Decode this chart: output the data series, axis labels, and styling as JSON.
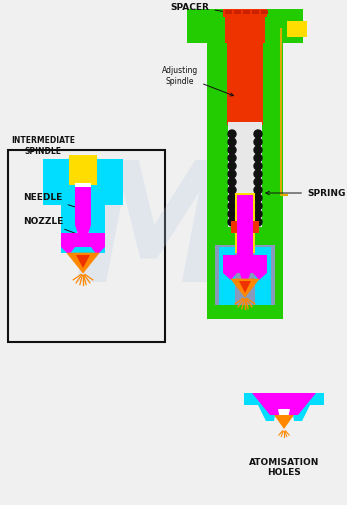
{
  "bg_color": "#f0f0f0",
  "green": "#22cc00",
  "orange_red": "#ee3300",
  "orange": "#ff8800",
  "yellow": "#ffdd00",
  "cyan": "#00ddff",
  "magenta": "#ff00ff",
  "purple_blue": "#8899bb",
  "white": "#ffffff",
  "black": "#111111",
  "spring_white": "#e8e8e8",
  "gold_line": "#ddaa00",
  "labels": {
    "spacer": "SPACER",
    "adjusting_spindle": "Adjusting\nSpindle",
    "spring": "SPRING",
    "intermediate_spindle": "INTERMEDIATE\nSPINDLE",
    "needle": "NEEDLE",
    "nozzle": "NOZZLE",
    "atomisation": "ATOMISATION\nHOLES"
  }
}
